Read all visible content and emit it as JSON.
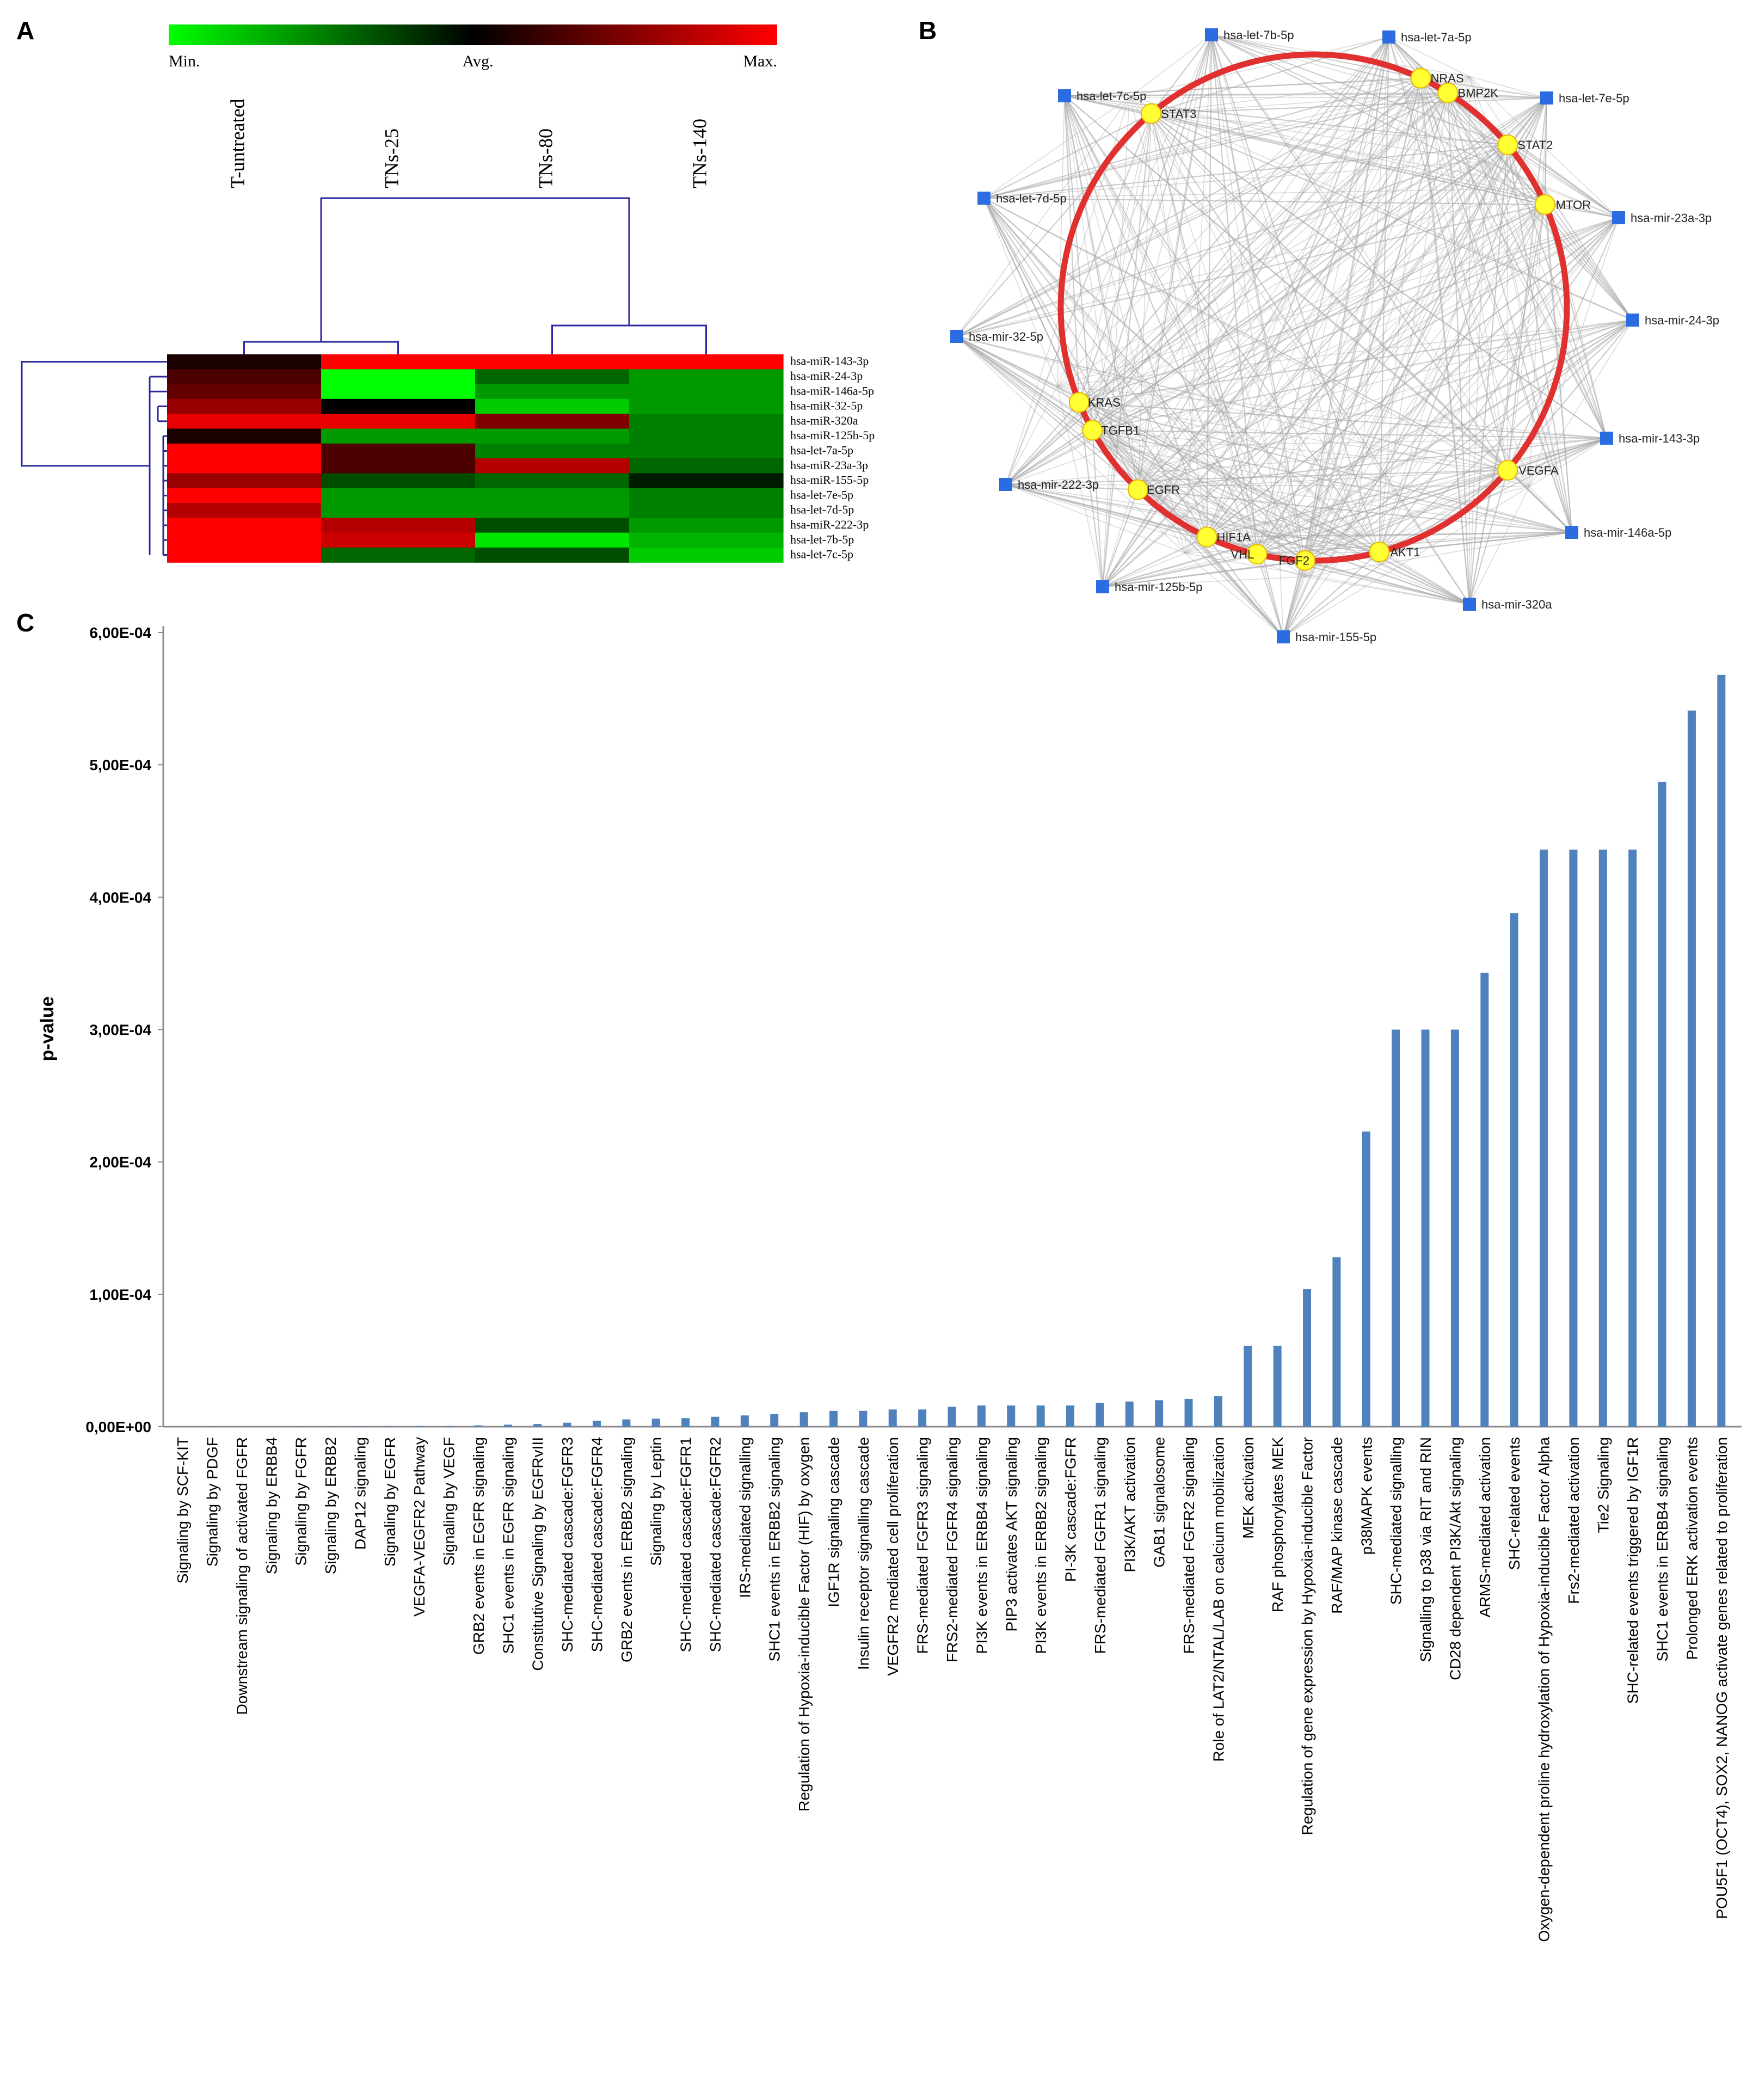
{
  "panels": {
    "a": "A",
    "b": "B",
    "c": "C"
  },
  "colors": {
    "low": "#00ff00",
    "mid": "#000000",
    "high": "#ff0000",
    "dendro": "#2a2a9c",
    "bar": "#4f81bd",
    "node_gene": "#ffff33",
    "node_mir": "#2b6de0",
    "circle": "#e03030",
    "edge": "#a6a6a6"
  },
  "heatmap": {
    "legend": {
      "min": "Min.",
      "avg": "Avg.",
      "max": "Max."
    },
    "columns": [
      "T-untreated",
      "TNs-25",
      "TNs-80",
      "TNs-140"
    ],
    "rows": [
      "hsa-miR-143-3p",
      "hsa-miR-24-3p",
      "hsa-miR-146a-5p",
      "hsa-miR-32-5p",
      "hsa-miR-320a",
      "hsa-miR-125b-5p",
      "hsa-let-7a-5p",
      "hsa-miR-23a-3p",
      "hsa-miR-155-5p",
      "hsa-let-7e-5p",
      "hsa-let-7d-5p",
      "hsa-miR-222-3p",
      "hsa-let-7b-5p",
      "hsa-let-7c-5p"
    ],
    "values": [
      [
        0.1,
        1.0,
        1.0,
        1.0
      ],
      [
        0.3,
        -1.0,
        -0.4,
        -0.6
      ],
      [
        0.4,
        -1.0,
        -0.6,
        -0.6
      ],
      [
        0.6,
        0.0,
        -0.8,
        -0.6
      ],
      [
        0.9,
        0.9,
        0.5,
        -0.5
      ],
      [
        0.1,
        -0.6,
        -0.6,
        -0.5
      ],
      [
        1.0,
        0.3,
        -0.5,
        -0.5
      ],
      [
        1.0,
        0.3,
        0.7,
        -0.4
      ],
      [
        0.6,
        -0.3,
        -0.4,
        -0.1
      ],
      [
        1.0,
        -0.6,
        -0.6,
        -0.5
      ],
      [
        0.7,
        -0.6,
        -0.6,
        -0.5
      ],
      [
        1.0,
        0.7,
        -0.3,
        -0.6
      ],
      [
        1.0,
        0.8,
        -0.9,
        -0.7
      ],
      [
        1.0,
        -0.4,
        -0.3,
        -0.8
      ]
    ]
  },
  "network": {
    "genes": [
      "STAT3",
      "NRAS",
      "BMP2K",
      "STAT2",
      "MTOR",
      "VEGFA",
      "AKT1",
      "FGF2",
      "VHL",
      "HIF1A",
      "EGFR",
      "TGFB1",
      "KRAS"
    ],
    "mirnas": [
      "hsa-let-7b-5p",
      "hsa-let-7a-5p",
      "hsa-let-7e-5p",
      "hsa-mir-23a-3p",
      "hsa-mir-24-3p",
      "hsa-mir-143-3p",
      "hsa-mir-146a-5p",
      "hsa-mir-320a",
      "hsa-mir-155-5p",
      "hsa-mir-125b-5p",
      "hsa-mir-222-3p",
      "hsa-mir-32-5p",
      "hsa-let-7d-5p",
      "hsa-let-7c-5p"
    ]
  },
  "chart_data": {
    "type": "bar",
    "ylabel": "p-value",
    "yticks": [
      "0,00E+00",
      "1,00E-04",
      "2,00E-04",
      "3,00E-04",
      "4,00E-04",
      "5,00E-04",
      "6,00E-04"
    ],
    "ylim": [
      0,
      0.0006
    ],
    "categories": [
      "Signaling by SCF-KIT",
      "Signaling by PDGF",
      "Downstream signaling of activated FGFR",
      "Signaling by ERBB4",
      "Signaling by FGFR",
      "Signaling by ERBB2",
      "DAP12 signaling",
      "Signaling by EGFR",
      "VEGFA-VEGFR2 Pathway",
      "Signaling by VEGF",
      "GRB2 events in EGFR signaling",
      "SHC1 events in EGFR signaling",
      "Constitutive Signaling by EGFRvIII",
      "SHC-mediated cascade:FGFR3",
      "SHC-mediated cascade:FGFR4",
      "GRB2 events in ERBB2 signaling",
      "Signaling by Leptin",
      "SHC-mediated cascade:FGFR1",
      "SHC-mediated cascade:FGFR2",
      "IRS-mediated signalling",
      "SHC1 events in ERBB2 signaling",
      "Regulation of Hypoxia-inducible Factor (HIF) by oxygen",
      "IGF1R signaling cascade",
      "Insulin receptor signalling cascade",
      "VEGFR2 mediated cell proliferation",
      "FRS-mediated FGFR3 signaling",
      "FRS2-mediated FGFR4 signaling",
      "PI3K events in ERBB4 signaling",
      "PIP3 activates AKT signaling",
      "PI3K events in ERBB2 signaling",
      "PI-3K cascade:FGFR",
      "FRS-mediated FGFR1 signaling",
      "PI3K/AKT activation",
      "GAB1 signalosome",
      "FRS-mediated FGFR2 signaling",
      "Role of LAT2/NTAL/LAB on calcium mobilization",
      "MEK activation",
      "RAF phosphorylates MEK",
      "Regulation of gene expression by Hypoxia-inducible Factor",
      "RAF/MAP kinase cascade",
      "p38MAPK events",
      "SHC-mediated signalling",
      "Signalling to p38 via RIT and RIN",
      "CD28 dependent PI3K/Akt signaling",
      "ARMS-mediated activation",
      "SHC-related events",
      "Oxygen-dependent proline hydroxylation of Hypoxia-inducible Factor Alpha",
      "Frs2-mediated activation",
      "Tie2 Signaling",
      "SHC-related events triggered by IGF1R",
      "SHC1 events in ERBB4 signaling",
      "Prolonged ERK activation events",
      "POU5F1 (OCT4), SOX2, NANOG activate genes related to proliferation"
    ],
    "values": [
      1e-07,
      1e-07,
      1e-07,
      1e-07,
      2e-07,
      2e-07,
      3e-07,
      3e-07,
      4e-07,
      4e-07,
      1e-06,
      1.5e-06,
      2e-06,
      3e-06,
      4.5e-06,
      5.5e-06,
      6e-06,
      6.5e-06,
      7.5e-06,
      8.5e-06,
      9.5e-06,
      1.1e-05,
      1.2e-05,
      1.2e-05,
      1.3e-05,
      1.3e-05,
      1.5e-05,
      1.6e-05,
      1.6e-05,
      1.6e-05,
      1.6e-05,
      1.8e-05,
      1.9e-05,
      2e-05,
      2.1e-05,
      2.3e-05,
      6.1e-05,
      6.1e-05,
      0.000104,
      0.000128,
      0.000223,
      0.0003,
      0.0003,
      0.0003,
      0.000343,
      0.000388,
      0.000436,
      0.000436,
      0.000436,
      0.000436,
      0.000487,
      0.000541,
      0.000568
    ]
  }
}
